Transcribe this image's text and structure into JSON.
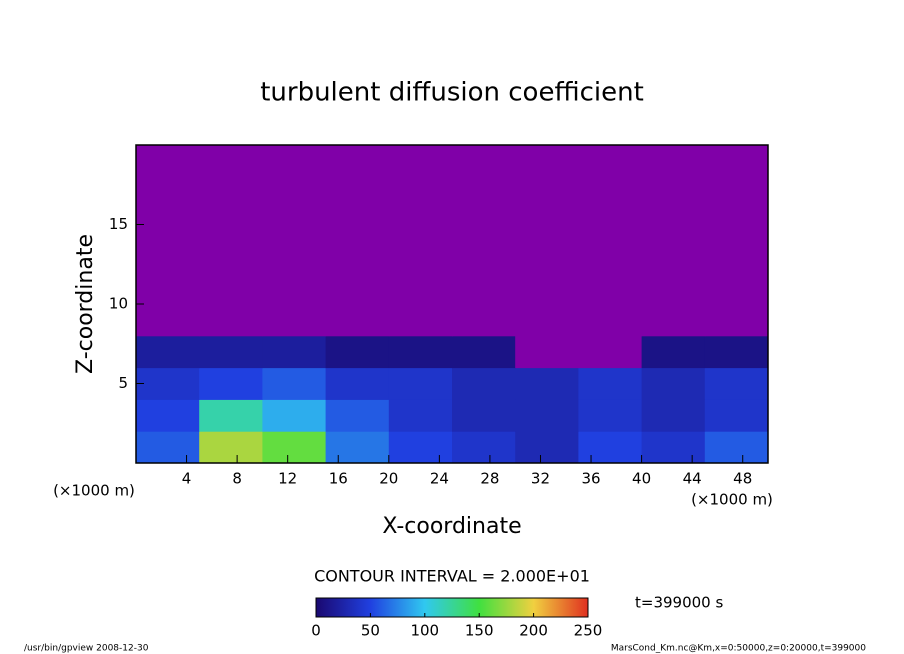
{
  "chart_data": {
    "type": "heatmap",
    "title": "turbulent diffusion coefficient",
    "xlabel": "X-coordinate",
    "ylabel": "Z-coordinate",
    "x_unit_label": "(×1000 m)",
    "y_unit_label": "(×1000 m)",
    "xlim": [
      0,
      50
    ],
    "ylim": [
      0,
      20
    ],
    "xticks": [
      4,
      8,
      12,
      16,
      20,
      24,
      28,
      32,
      36,
      40,
      44,
      48
    ],
    "yticks": [
      5,
      10,
      15
    ],
    "x_edges": [
      0,
      5,
      10,
      15,
      20,
      25,
      30,
      35,
      40,
      45,
      50
    ],
    "y_edges": [
      0,
      2,
      4,
      6,
      8,
      10,
      12,
      14,
      16,
      18,
      20
    ],
    "z": [
      [
        60,
        180,
        160,
        70,
        50,
        40,
        30,
        50,
        40,
        60
      ],
      [
        50,
        120,
        90,
        60,
        40,
        30,
        30,
        40,
        30,
        40
      ],
      [
        40,
        50,
        60,
        40,
        40,
        30,
        30,
        40,
        30,
        40
      ],
      [
        20,
        20,
        20,
        10,
        10,
        10,
        0,
        0,
        10,
        10
      ],
      [
        0,
        0,
        0,
        0,
        0,
        0,
        0,
        0,
        0,
        0
      ],
      [
        0,
        0,
        0,
        0,
        0,
        0,
        0,
        0,
        0,
        0
      ],
      [
        0,
        0,
        0,
        0,
        0,
        0,
        0,
        0,
        0,
        0
      ],
      [
        0,
        0,
        0,
        0,
        0,
        0,
        0,
        0,
        0,
        0
      ],
      [
        0,
        0,
        0,
        0,
        0,
        0,
        0,
        0,
        0,
        0
      ],
      [
        0,
        0,
        0,
        0,
        0,
        0,
        0,
        0,
        0,
        0
      ]
    ],
    "colormap": [
      "#1a0870",
      "#2040e0",
      "#30c8f0",
      "#40e040",
      "#f0d040",
      "#e03020"
    ],
    "zero_color": "#8000a8",
    "clim": [
      0,
      250
    ],
    "colorbar_ticks": [
      0,
      50,
      100,
      150,
      200,
      250
    ],
    "contour_interval": "CONTOUR INTERVAL = 2.000E+01",
    "time_label": "t=399000 s",
    "footer_left": "/usr/bin/gpview   2008-12-30",
    "footer_right": "MarsCond_Km.nc@Km,x=0:50000,z=0:20000,t=399000"
  }
}
